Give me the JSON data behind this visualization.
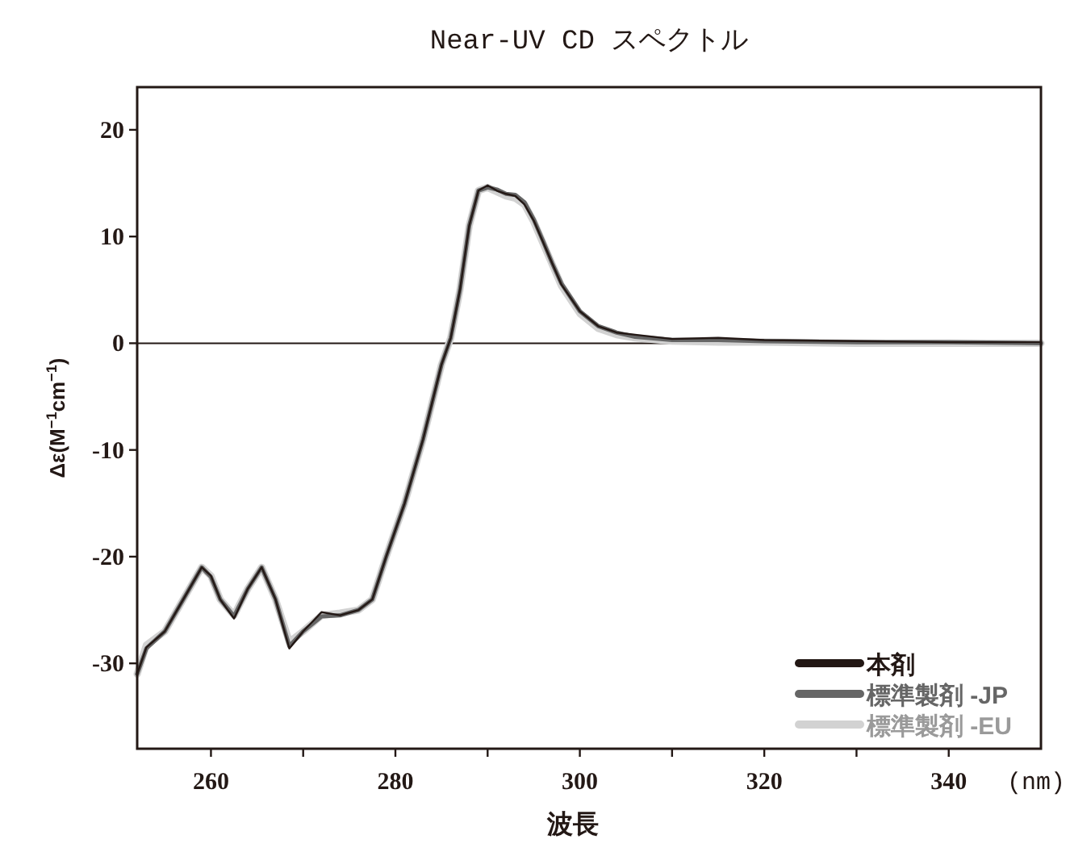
{
  "chart_data": {
    "type": "line",
    "title": "Near-UV CD スペクトル",
    "xlabel": "波長",
    "ylabel": "Δε(M$^{−1}$cm$^{−1}$)",
    "annotations": [
      "(nm)"
    ],
    "xlim": [
      252,
      350
    ],
    "xticks": [
      260,
      {
        "value": 270,
        "label": null
      },
      280,
      {
        "value": 290,
        "label": null
      },
      300,
      {
        "value": 310,
        "label": null
      },
      320,
      {
        "value": 330,
        "label": null
      },
      340
    ],
    "ylim": [
      -38,
      24
    ],
    "yticks": [
      -30,
      -20,
      -10,
      0,
      10,
      20
    ],
    "ref_lines": [
      {
        "axis": "y",
        "value": 0,
        "color": "#231815"
      }
    ],
    "grid": false,
    "legend": "bottom right",
    "x": [
      252,
      253,
      255,
      257,
      259,
      260,
      261,
      262.5,
      264,
      265.5,
      267,
      268.5,
      270,
      272,
      274,
      276,
      277.5,
      279,
      281,
      283,
      285,
      286,
      287,
      288,
      289,
      290,
      291,
      292,
      293,
      294,
      295,
      296,
      297,
      298,
      300,
      302,
      304,
      306,
      310,
      315,
      320,
      330,
      340,
      350
    ],
    "series": [
      {
        "name": "本剤",
        "color": "#231815",
        "values": [
          -31,
          -28.5,
          -27,
          -24,
          -21,
          -21.8,
          -24,
          -25.8,
          -23,
          -21,
          -24,
          -28.6,
          -27,
          -25.2,
          -25.5,
          -25,
          -24,
          -20,
          -15,
          -9,
          -2,
          0.5,
          5,
          11,
          14.3,
          14.8,
          14.3,
          14,
          13.8,
          13,
          11.5,
          9.5,
          7.5,
          5.5,
          3,
          1.6,
          1,
          0.8,
          0.4,
          0.5,
          0.3,
          0.2,
          0.1,
          0.1
        ]
      },
      {
        "name": "標準製剤 -JP",
        "color": "#666666",
        "values": [
          -31,
          -28.6,
          -27,
          -24,
          -21,
          -21.9,
          -24,
          -25.6,
          -23,
          -21,
          -24,
          -28.4,
          -27,
          -25.6,
          -25.5,
          -25,
          -24,
          -20,
          -15,
          -9,
          -2,
          0.5,
          5,
          11,
          14.3,
          14.6,
          14.4,
          14,
          13.9,
          13.2,
          11.6,
          9.6,
          7.5,
          5.6,
          3,
          1.6,
          1,
          0.6,
          0.3,
          0.3,
          0.2,
          0.1,
          0.1,
          0
        ]
      },
      {
        "name": "標準製剤 -EU",
        "color": "#d2d2d2",
        "values": [
          -31,
          -28.3,
          -27,
          -24,
          -21,
          -21.8,
          -24,
          -25.5,
          -23,
          -21,
          -24,
          -28,
          -27,
          -25.5,
          -25.3,
          -25,
          -24,
          -20,
          -15,
          -9,
          -2,
          0.5,
          5,
          11,
          14.3,
          14.6,
          14.2,
          13.8,
          13.6,
          13,
          11.4,
          9.4,
          7.4,
          5.4,
          2.8,
          1.4,
          0.8,
          0.5,
          0.2,
          0.1,
          0.1,
          0,
          0,
          0
        ]
      }
    ]
  }
}
